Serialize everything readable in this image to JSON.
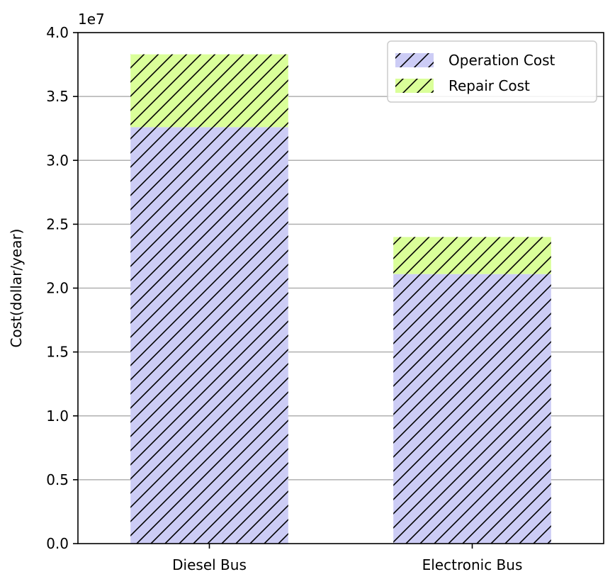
{
  "chart_data": {
    "type": "bar",
    "stacked": true,
    "categories": [
      "Diesel Bus",
      "Electronic Bus"
    ],
    "series": [
      {
        "name": "Operation Cost",
        "values": [
          32600000,
          21100000
        ],
        "color": "#ccccf5",
        "hatch": "/"
      },
      {
        "name": "Repair Cost",
        "values": [
          5700000,
          2900000
        ],
        "color": "#daff99",
        "hatch": "/"
      }
    ],
    "ylabel": "Cost(dollar/year)",
    "xlabel": "",
    "title": "",
    "ylim": [
      0,
      40000000
    ],
    "y_scale_label": "1e7",
    "yticks": [
      0,
      5000000,
      10000000,
      15000000,
      20000000,
      25000000,
      30000000,
      35000000,
      40000000
    ],
    "ytick_labels": [
      "0.0",
      "0.5",
      "1.0",
      "1.5",
      "2.0",
      "2.5",
      "3.0",
      "3.5",
      "4.0"
    ],
    "grid": "y",
    "legend_position": "top-right"
  }
}
